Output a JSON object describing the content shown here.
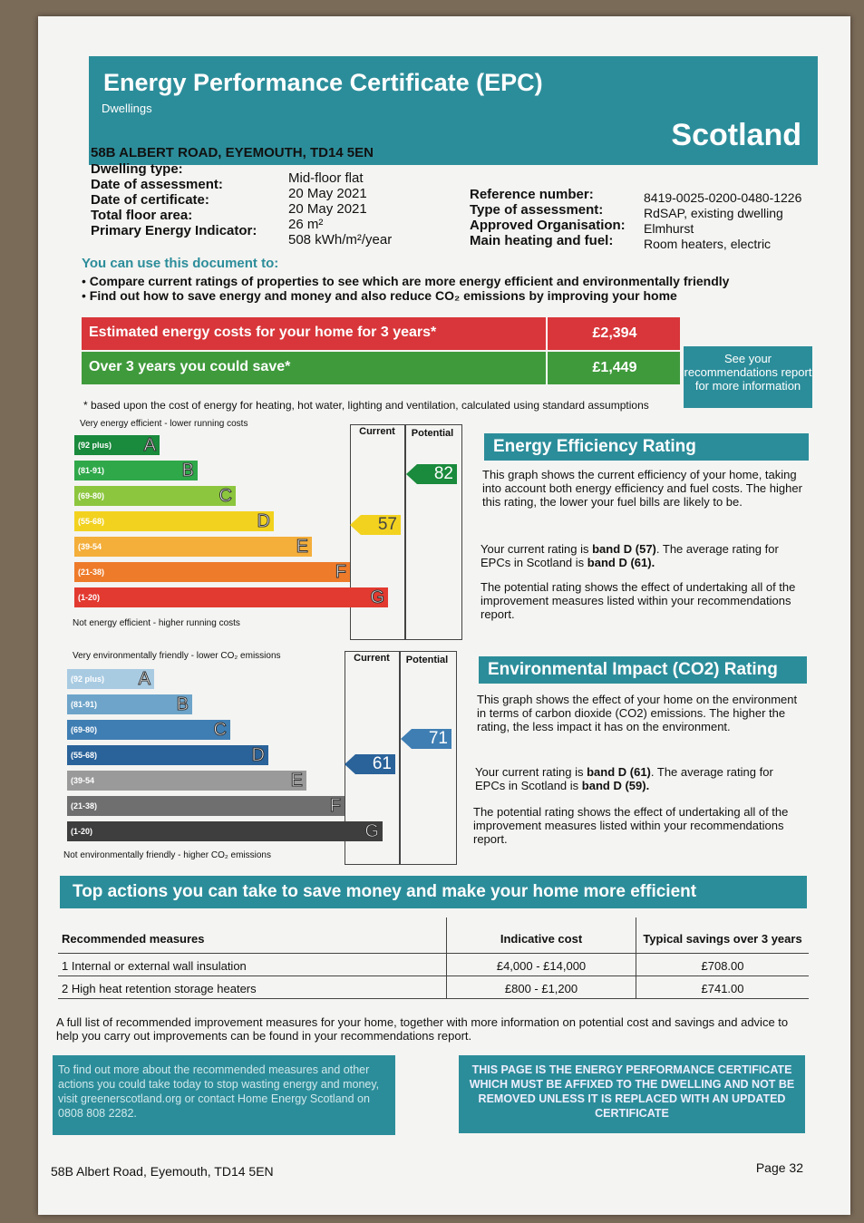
{
  "header": {
    "title": "Energy Performance Certificate (EPC)",
    "subtitle": "Dwellings",
    "country": "Scotland"
  },
  "address": "58B ALBERT ROAD, EYEMOUTH, TD14 5EN",
  "details_left": [
    {
      "label": "Dwelling type:",
      "value": "Mid-floor flat"
    },
    {
      "label": "Date of assessment:",
      "value": "20 May 2021"
    },
    {
      "label": "Date of certificate:",
      "value": "20 May 2021"
    },
    {
      "label": "Total floor area:",
      "value": "26 m²"
    },
    {
      "label": "Primary Energy Indicator:",
      "value": "508 kWh/m²/year"
    }
  ],
  "details_right": [
    {
      "label": "Reference number:",
      "value": "8419-0025-0200-0480-1226"
    },
    {
      "label": "Type of assessment:",
      "value": "RdSAP, existing dwelling"
    },
    {
      "label": "Approved Organisation:",
      "value": "Elmhurst"
    },
    {
      "label": "Main heating and fuel:",
      "value": "Room heaters, electric"
    }
  ],
  "use_intro": "You can use this document to:",
  "bullets": [
    "Compare current ratings of properties to see which are more energy efficient and environmentally friendly",
    "Find out how to save energy and money and also reduce CO₂ emissions by improving your home"
  ],
  "costs": {
    "estimated_label": "Estimated energy costs for your home for 3 years*",
    "estimated_value": "£2,394",
    "save_label": "Over 3 years you could save*",
    "save_value": "£1,449",
    "see_box": "See your recommendations report for more information",
    "footnote": "* based upon the cost of energy for heating, hot water, lighting and ventilation, calculated using standard assumptions",
    "colors": {
      "estimated": "#d8363a",
      "save": "#3f9a3c"
    }
  },
  "energy_chart": {
    "top_note": "Very energy efficient - lower running costs",
    "bottom_note": "Not energy efficient - higher running costs",
    "current_head": "Current",
    "potential_head": "Potential",
    "bands": [
      {
        "range": "(92 plus)",
        "letter": "A",
        "color": "#1a8a3c"
      },
      {
        "range": "(81-91)",
        "letter": "B",
        "color": "#2fa84a"
      },
      {
        "range": "(69-80)",
        "letter": "C",
        "color": "#8cc63e"
      },
      {
        "range": "(55-68)",
        "letter": "D",
        "color": "#f2d21f"
      },
      {
        "range": "(39-54",
        "letter": "E",
        "color": "#f4ae3a"
      },
      {
        "range": "(21-38)",
        "letter": "F",
        "color": "#ee7b2a"
      },
      {
        "range": "(1-20)",
        "letter": "G",
        "color": "#e23a30"
      }
    ],
    "current": {
      "value": "57",
      "band_index": 3,
      "color": "#f2d21f"
    },
    "potential": {
      "value": "82",
      "band_index": 1,
      "color": "#1a8a3c"
    }
  },
  "energy_rating": {
    "title": "Energy Efficiency Rating",
    "para1": "This graph shows the current efficiency of your home, taking into account both energy efficiency and fuel costs. The higher this rating, the lower your fuel bills are likely to be.",
    "para2_a": "Your current rating is ",
    "para2_b": "band D (57)",
    "para2_c": ". The average rating for EPCs in Scotland is ",
    "para2_d": "band D (61).",
    "para3": "The potential rating shows the effect of undertaking all of the improvement measures listed within your recommendations report."
  },
  "env_chart": {
    "top_note": "Very environmentally friendly - lower CO₂ emissions",
    "bottom_note": "Not environmentally friendly - higher CO₂ emissions",
    "current_head": "Current",
    "potential_head": "Potential",
    "bands": [
      {
        "range": "(92 plus)",
        "letter": "A",
        "color": "#a9cbe2"
      },
      {
        "range": "(81-91)",
        "letter": "B",
        "color": "#6ea4c9"
      },
      {
        "range": "(69-80)",
        "letter": "C",
        "color": "#3f7eb3"
      },
      {
        "range": "(55-68)",
        "letter": "D",
        "color": "#2a629a"
      },
      {
        "range": "(39-54",
        "letter": "E",
        "color": "#9a9a9a"
      },
      {
        "range": "(21-38)",
        "letter": "F",
        "color": "#6f6f6f"
      },
      {
        "range": "(1-20)",
        "letter": "G",
        "color": "#3e3e3e"
      }
    ],
    "current": {
      "value": "61",
      "band_index": 3,
      "color": "#2a629a"
    },
    "potential": {
      "value": "71",
      "band_index": 2,
      "color": "#3f7eb3"
    }
  },
  "env_rating": {
    "title": "Environmental Impact (CO2) Rating",
    "para1": "This graph shows the effect of your home on the environment in terms of carbon dioxide (CO2) emissions. The higher the rating, the less impact it has on the environment.",
    "para2_a": "Your current rating is ",
    "para2_b": "band D (61)",
    "para2_c": ". The average rating for EPCs in Scotland is ",
    "para2_d": "band D (59).",
    "para3": "The potential rating shows the effect of undertaking all of the improvement measures listed within your recommendations report."
  },
  "actions": {
    "title": "Top actions you can take to save money and make your home more efficient",
    "headers": [
      "Recommended measures",
      "Indicative cost",
      "Typical savings over 3 years"
    ],
    "rows": [
      [
        "1 Internal or external wall insulation",
        "£4,000 - £14,000",
        "£708.00"
      ],
      [
        "2 High heat retention storage heaters",
        "£800 - £1,200",
        "£741.00"
      ]
    ],
    "full_list": "A full list of recommended improvement measures for your home, together with more information on potential cost and savings and advice to help you carry out improvements can be found in your recommendations report."
  },
  "boxes": {
    "left": "To find out more about the recommended measures and other actions you could take today to stop wasting energy and money, visit greenerscotland.org or contact Home Energy Scotland on 0808 808 2282.",
    "right": "THIS PAGE IS THE ENERGY PERFORMANCE CERTIFICATE WHICH MUST BE AFFIXED TO THE DWELLING AND NOT BE REMOVED UNLESS IT IS REPLACED WITH AN UPDATED CERTIFICATE"
  },
  "footer": {
    "address": "58B Albert Road, Eyemouth, TD14 5EN",
    "page": "Page 32"
  }
}
